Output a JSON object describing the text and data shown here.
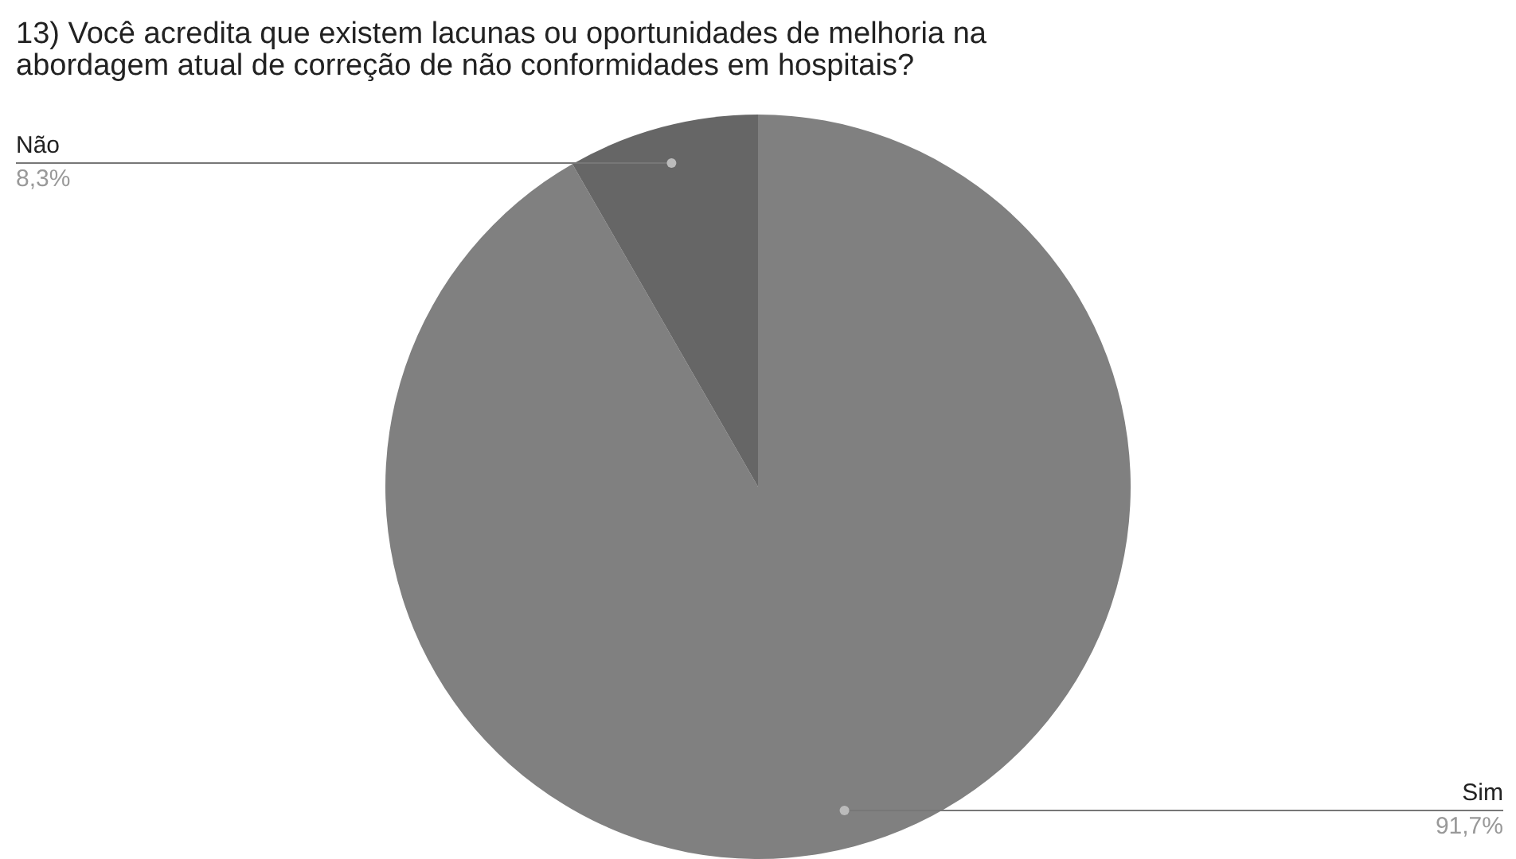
{
  "chart_data": {
    "type": "pie",
    "title": "13) Você acredita que existem lacunas ou oportunidades de melhoria na abordagem atual de correção de não conformidades em hospitais?",
    "categories": [
      "Sim",
      "Não"
    ],
    "values": [
      91.7,
      8.3
    ],
    "colors": [
      "#808080",
      "#666666"
    ],
    "value_labels": [
      "91,7%",
      "8,3%"
    ],
    "legend": false
  }
}
